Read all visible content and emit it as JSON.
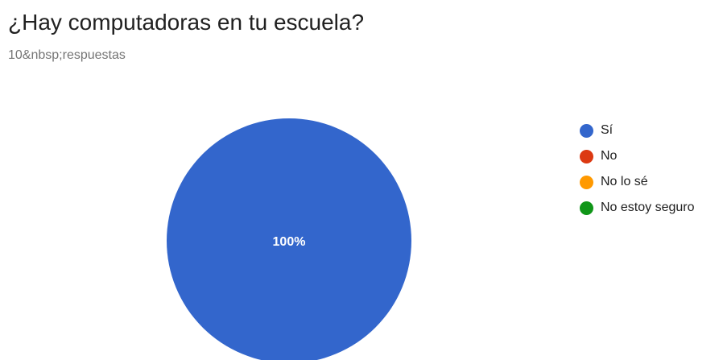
{
  "header": {
    "question": "¿Hay computadoras en tu escuela?",
    "responses": "10&nbsp;respuestas"
  },
  "chart_data": {
    "type": "pie",
    "categories": [
      "Sí",
      "No",
      "No lo sé",
      "No estoy seguro"
    ],
    "values": [
      100,
      0,
      0,
      0
    ],
    "value_labels": [
      "100%",
      "",
      "",
      ""
    ],
    "colors": [
      "#3366cc",
      "#dc3912",
      "#ff9900",
      "#109618"
    ],
    "legend_position": "right"
  }
}
